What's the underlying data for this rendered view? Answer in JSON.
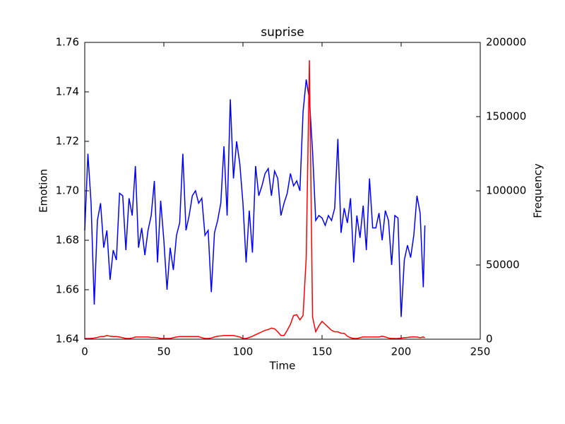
{
  "chart_data": {
    "type": "line",
    "title": "suprise",
    "xlabel": "Time",
    "ylabel": "Emotion",
    "y2label": "Frequency",
    "x": [
      0,
      2,
      4,
      6,
      8,
      10,
      12,
      14,
      16,
      18,
      20,
      22,
      24,
      26,
      28,
      30,
      32,
      34,
      36,
      38,
      40,
      42,
      44,
      46,
      48,
      50,
      52,
      54,
      56,
      58,
      60,
      62,
      64,
      66,
      68,
      70,
      72,
      74,
      76,
      78,
      80,
      82,
      84,
      86,
      88,
      90,
      92,
      94,
      96,
      98,
      100,
      102,
      104,
      106,
      108,
      110,
      112,
      114,
      116,
      118,
      120,
      122,
      124,
      126,
      128,
      130,
      132,
      134,
      136,
      138,
      140,
      142,
      144,
      146,
      148,
      150,
      152,
      154,
      156,
      158,
      160,
      162,
      164,
      166,
      168,
      170,
      172,
      174,
      176,
      178,
      180,
      182,
      184,
      186,
      188,
      190,
      192,
      194,
      196,
      198,
      200,
      202,
      204,
      206,
      208,
      210,
      212,
      214,
      215
    ],
    "series": [
      {
        "color": "#0000ff",
        "axis": "y",
        "values": [
          1.684,
          1.715,
          1.695,
          1.654,
          1.688,
          1.695,
          1.677,
          1.684,
          1.664,
          1.676,
          1.672,
          1.699,
          1.698,
          1.676,
          1.697,
          1.69,
          1.71,
          1.677,
          1.685,
          1.674,
          1.684,
          1.69,
          1.704,
          1.671,
          1.696,
          1.68,
          1.66,
          1.677,
          1.668,
          1.682,
          1.687,
          1.715,
          1.684,
          1.69,
          1.698,
          1.7,
          1.695,
          1.697,
          1.682,
          1.684,
          1.659,
          1.683,
          1.688,
          1.695,
          1.718,
          1.69,
          1.737,
          1.705,
          1.72,
          1.711,
          1.695,
          1.671,
          1.692,
          1.675,
          1.71,
          1.698,
          1.702,
          1.707,
          1.709,
          1.698,
          1.708,
          1.705,
          1.69,
          1.695,
          1.699,
          1.707,
          1.702,
          1.704,
          1.7,
          1.732,
          1.745,
          1.737,
          1.716,
          1.688,
          1.69,
          1.689,
          1.686,
          1.69,
          1.688,
          1.693,
          1.721,
          1.683,
          1.693,
          1.687,
          1.697,
          1.671,
          1.69,
          1.681,
          1.694,
          1.676,
          1.705,
          1.685,
          1.685,
          1.691,
          1.68,
          1.692,
          1.688,
          1.67,
          1.69,
          1.689,
          1.649,
          1.672,
          1.678,
          1.673,
          1.682,
          1.698,
          1.691,
          1.661,
          1.686
        ]
      },
      {
        "color": "#ff0000",
        "axis": "y2",
        "values": [
          500,
          500,
          500,
          800,
          1200,
          1800,
          1800,
          2500,
          2000,
          1800,
          1800,
          1500,
          1000,
          500,
          500,
          800,
          1500,
          1500,
          1500,
          1500,
          1500,
          1200,
          1200,
          1000,
          500,
          500,
          500,
          500,
          1000,
          1500,
          1800,
          1800,
          1800,
          1800,
          1800,
          1800,
          1800,
          1000,
          500,
          500,
          800,
          1500,
          2000,
          2200,
          2500,
          2500,
          2500,
          2500,
          2000,
          1500,
          500,
          500,
          1200,
          2000,
          3000,
          4000,
          5000,
          6000,
          6500,
          7500,
          7000,
          5000,
          2500,
          2500,
          6000,
          10000,
          16000,
          16500,
          13000,
          16000,
          55000,
          188000,
          15000,
          5000,
          9000,
          12000,
          10000,
          8000,
          6000,
          5000,
          5000,
          4000,
          4000,
          2000,
          1000,
          500,
          500,
          1000,
          1500,
          1500,
          1500,
          1500,
          1500,
          1500,
          2000,
          1500,
          800,
          500,
          500,
          500,
          800,
          1000,
          1200,
          1500,
          1500,
          1500,
          1000,
          1500,
          1000
        ]
      }
    ],
    "xlim": [
      0,
      250
    ],
    "xticks": [
      0,
      50,
      100,
      150,
      200,
      250
    ],
    "ylim": [
      1.64,
      1.76
    ],
    "yticks": [
      1.64,
      1.66,
      1.68,
      {
        "value": 1.7,
        "label": "1.70"
      },
      1.72,
      1.74,
      1.76
    ],
    "y2lim": [
      0,
      200000
    ],
    "y2ticks": [
      0,
      50000,
      100000,
      150000,
      200000
    ]
  }
}
